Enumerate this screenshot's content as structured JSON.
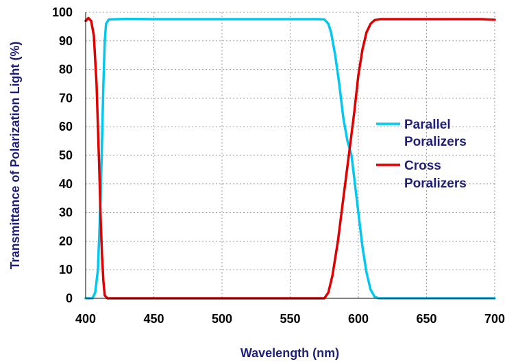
{
  "chart_data": {
    "type": "line",
    "title": "",
    "xlabel": "Wavelength (nm)",
    "ylabel": "Transmittance of Polarization Light (%)",
    "xlim": [
      400,
      700
    ],
    "ylim": [
      0,
      100
    ],
    "x_ticks": [
      400,
      450,
      500,
      550,
      600,
      650,
      700
    ],
    "y_ticks": [
      0,
      10,
      20,
      30,
      40,
      50,
      60,
      70,
      80,
      90,
      100
    ],
    "grid": true,
    "legend_position": "right",
    "series": [
      {
        "name_lines": [
          "Parallel",
          "Poralizers"
        ],
        "color": "#00c8f0",
        "points": [
          [
            400,
            0
          ],
          [
            405,
            0
          ],
          [
            407,
            2
          ],
          [
            409,
            10
          ],
          [
            411,
            35
          ],
          [
            412,
            55
          ],
          [
            413,
            75
          ],
          [
            414,
            90
          ],
          [
            415,
            96
          ],
          [
            417,
            97.5
          ],
          [
            430,
            97.7
          ],
          [
            450,
            97.6
          ],
          [
            500,
            97.6
          ],
          [
            550,
            97.6
          ],
          [
            570,
            97.6
          ],
          [
            575,
            97.5
          ],
          [
            578,
            96
          ],
          [
            580,
            93
          ],
          [
            583,
            85
          ],
          [
            586,
            75
          ],
          [
            589,
            63
          ],
          [
            592,
            55
          ],
          [
            595,
            50
          ],
          [
            597,
            42
          ],
          [
            600,
            30
          ],
          [
            603,
            18
          ],
          [
            606,
            9
          ],
          [
            609,
            3
          ],
          [
            612,
            0.5
          ],
          [
            615,
            0
          ],
          [
            650,
            0
          ],
          [
            700,
            0
          ]
        ]
      },
      {
        "name_lines": [
          "Cross",
          "Poralizers"
        ],
        "color": "#e00000",
        "points": [
          [
            400,
            97
          ],
          [
            402,
            98
          ],
          [
            404,
            97
          ],
          [
            406,
            92
          ],
          [
            408,
            75
          ],
          [
            409,
            60
          ],
          [
            410,
            45
          ],
          [
            411,
            28
          ],
          [
            412,
            15
          ],
          [
            413,
            6
          ],
          [
            414,
            1
          ],
          [
            416,
            0
          ],
          [
            500,
            0
          ],
          [
            550,
            0
          ],
          [
            575,
            0
          ],
          [
            578,
            2
          ],
          [
            581,
            8
          ],
          [
            585,
            20
          ],
          [
            589,
            35
          ],
          [
            593,
            50
          ],
          [
            597,
            65
          ],
          [
            600,
            78
          ],
          [
            603,
            87
          ],
          [
            606,
            93
          ],
          [
            609,
            96
          ],
          [
            612,
            97.3
          ],
          [
            616,
            97.6
          ],
          [
            650,
            97.6
          ],
          [
            690,
            97.6
          ],
          [
            700,
            97.4
          ]
        ]
      }
    ]
  }
}
